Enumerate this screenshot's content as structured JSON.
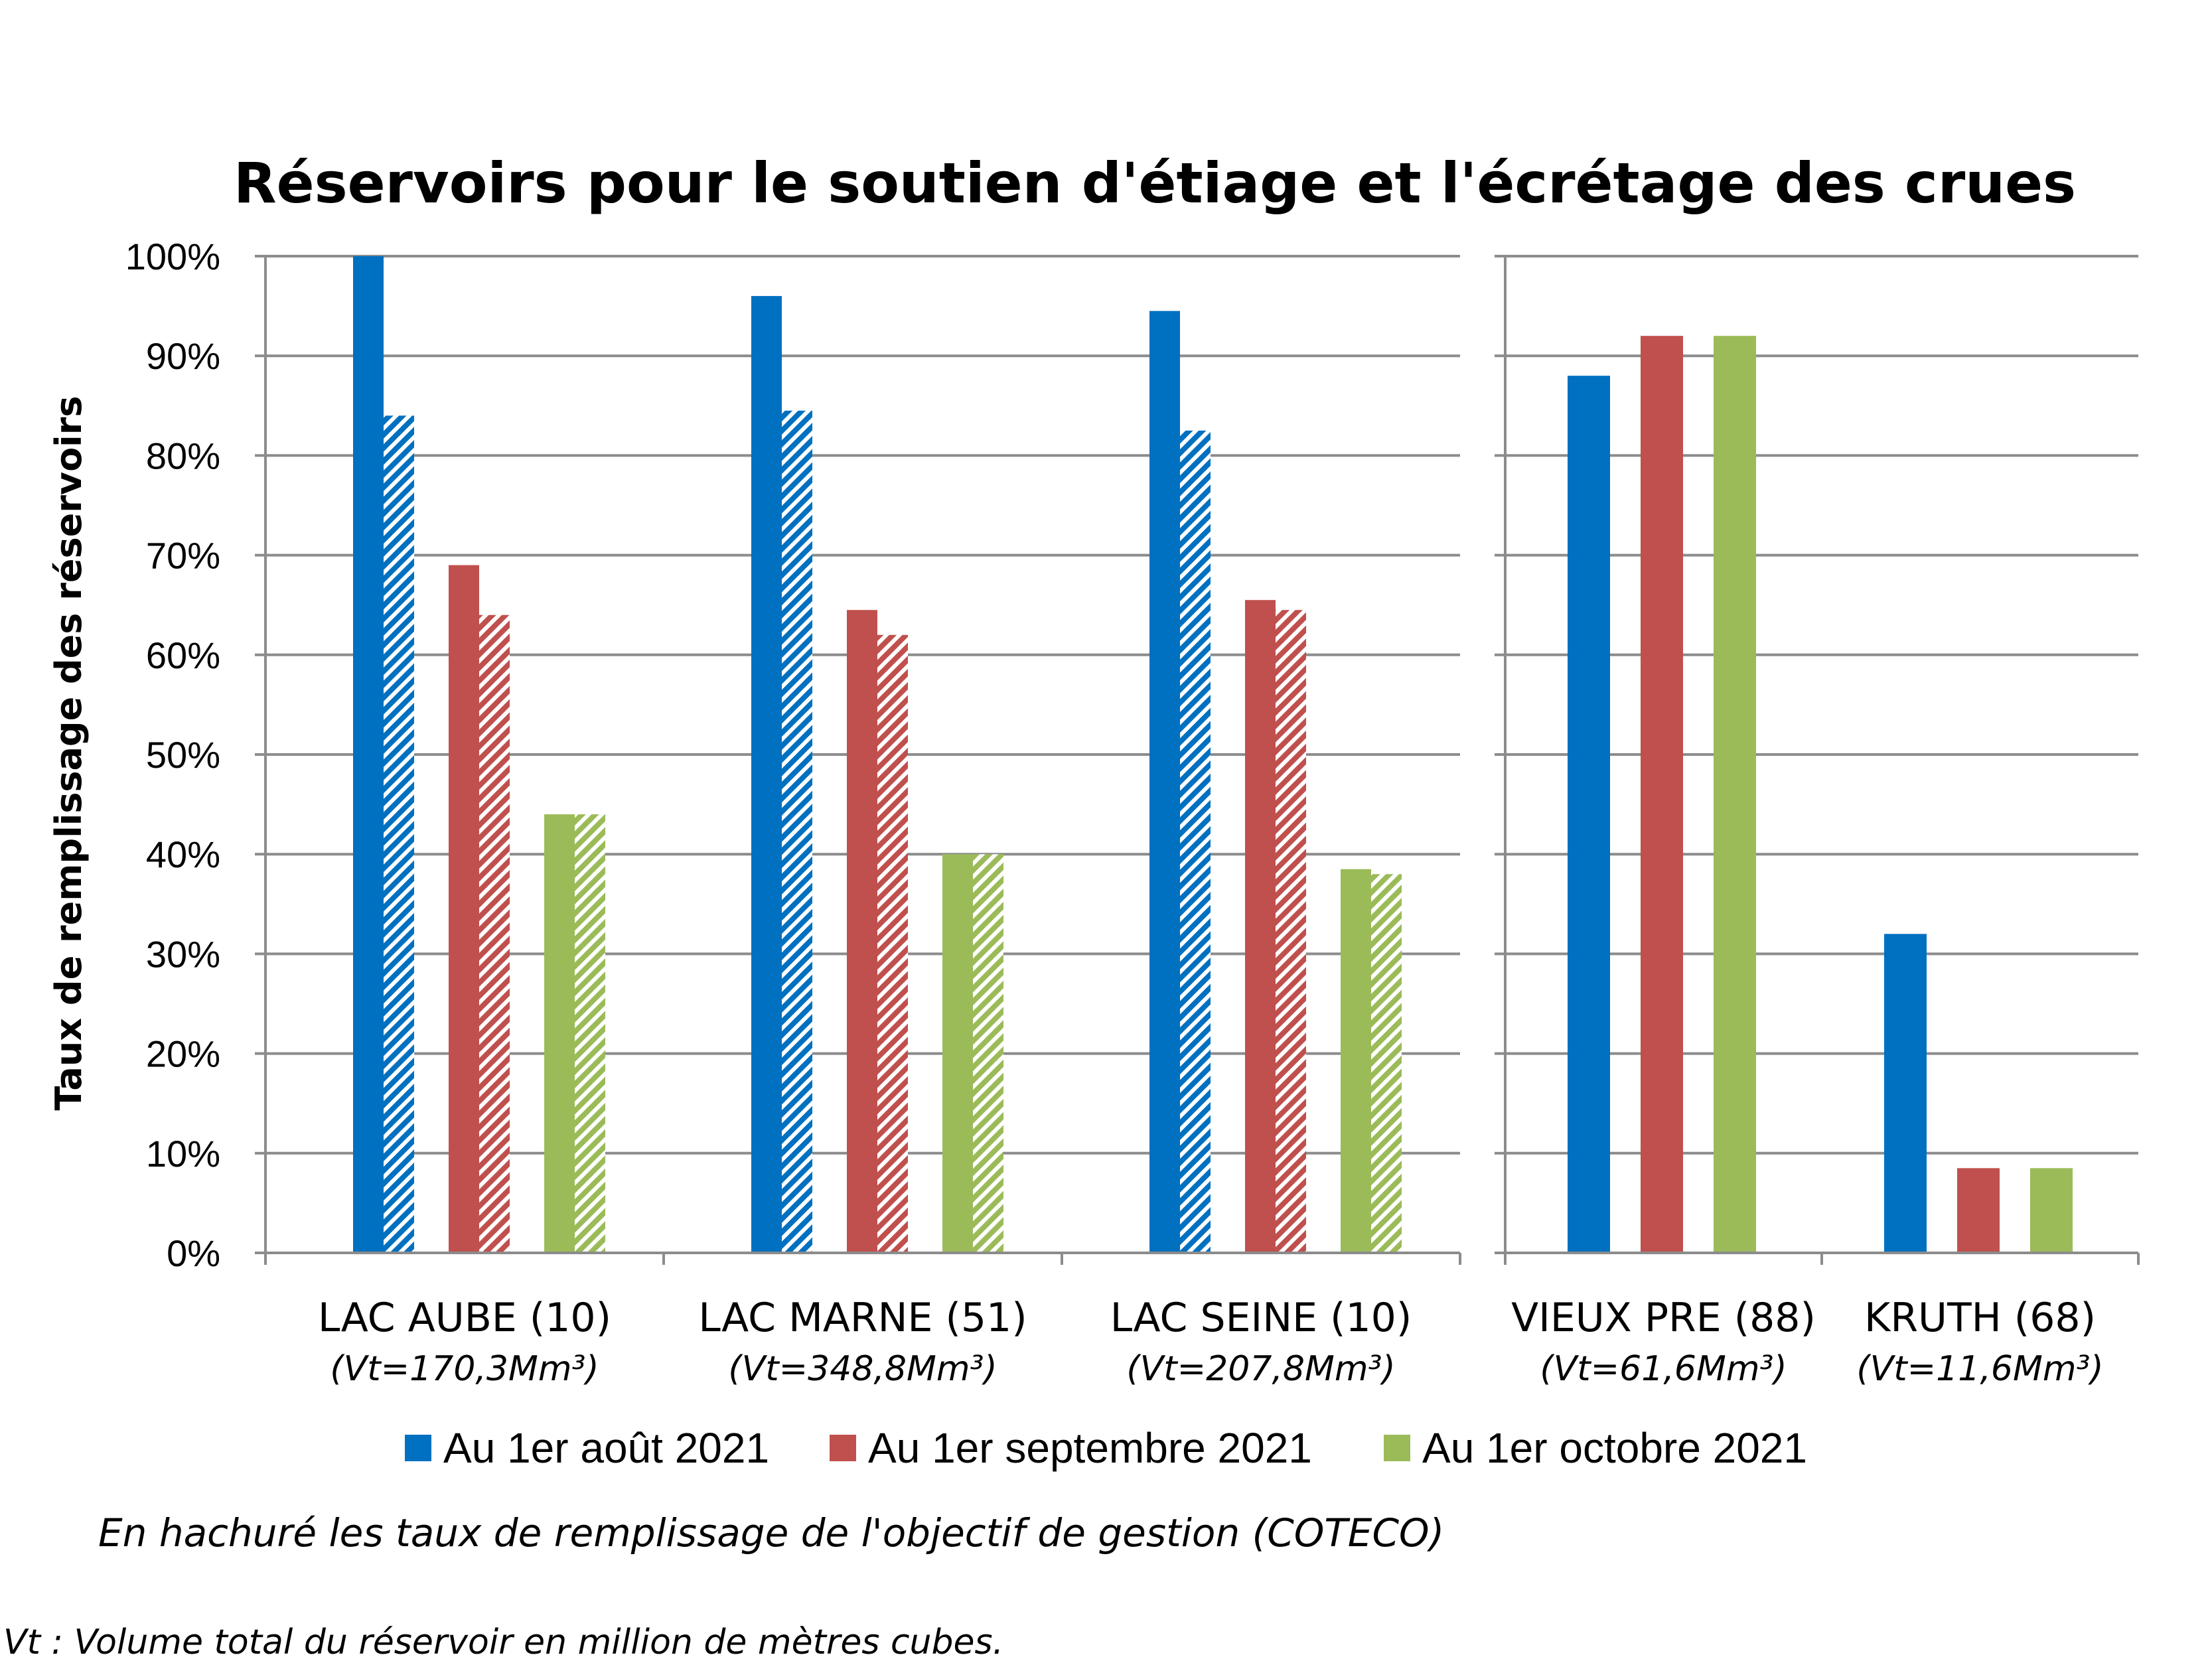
{
  "chart_data": {
    "type": "bar",
    "title": "Réservoirs pour le soutien d'étiage et l'écrétage des crues",
    "ylabel": "Taux de remplissage des réservoirs",
    "ylim": [
      0,
      100
    ],
    "yticks": [
      "0%",
      "10%",
      "20%",
      "30%",
      "40%",
      "50%",
      "60%",
      "70%",
      "80%",
      "90%",
      "100%"
    ],
    "legend_position": "bottom",
    "panels": [
      {
        "categories": [
          {
            "name": "LAC AUBE (10)",
            "volume": "(Vt=170,3Mm³)"
          },
          {
            "name": "LAC MARNE (51)",
            "volume": "(Vt=348,8Mm³)"
          },
          {
            "name": "LAC SEINE (10)",
            "volume": "(Vt=207,8Mm³)"
          }
        ],
        "series": [
          {
            "name": "Au 1er août 2021",
            "color": "#0070C0",
            "values": [
              100,
              96,
              94.5
            ],
            "objective": [
              84,
              84.5,
              82.5
            ]
          },
          {
            "name": "Au 1er septembre 2021",
            "color": "#C0504D",
            "values": [
              69,
              64.5,
              65.5
            ],
            "objective": [
              64,
              62,
              64.5
            ]
          },
          {
            "name": "Au 1er octobre 2021",
            "color": "#9BBB59",
            "values": [
              44,
              40,
              38.5
            ],
            "objective": [
              44,
              40,
              38
            ]
          }
        ]
      },
      {
        "categories": [
          {
            "name": "VIEUX PRE (88)",
            "volume": "(Vt=61,6Mm³)"
          },
          {
            "name": "KRUTH (68)",
            "volume": "(Vt=11,6Mm³)"
          }
        ],
        "series": [
          {
            "name": "Au 1er août 2021",
            "color": "#0070C0",
            "values": [
              88,
              32
            ]
          },
          {
            "name": "Au 1er septembre 2021",
            "color": "#C0504D",
            "values": [
              92,
              8.5
            ]
          },
          {
            "name": "Au 1er octobre 2021",
            "color": "#9BBB59",
            "values": [
              92,
              8.5
            ]
          }
        ]
      }
    ],
    "legend": [
      {
        "label": "Au 1er août 2021",
        "color": "#0070C0"
      },
      {
        "label": "Au 1er septembre 2021",
        "color": "#C0504D"
      },
      {
        "label": "Au 1er octobre 2021",
        "color": "#9BBB59"
      }
    ],
    "note": "En hachuré les taux de remplissage de l'objectif de gestion (COTECO)",
    "footnote": "Vt : Volume total du réservoir en million de mètres cubes."
  }
}
